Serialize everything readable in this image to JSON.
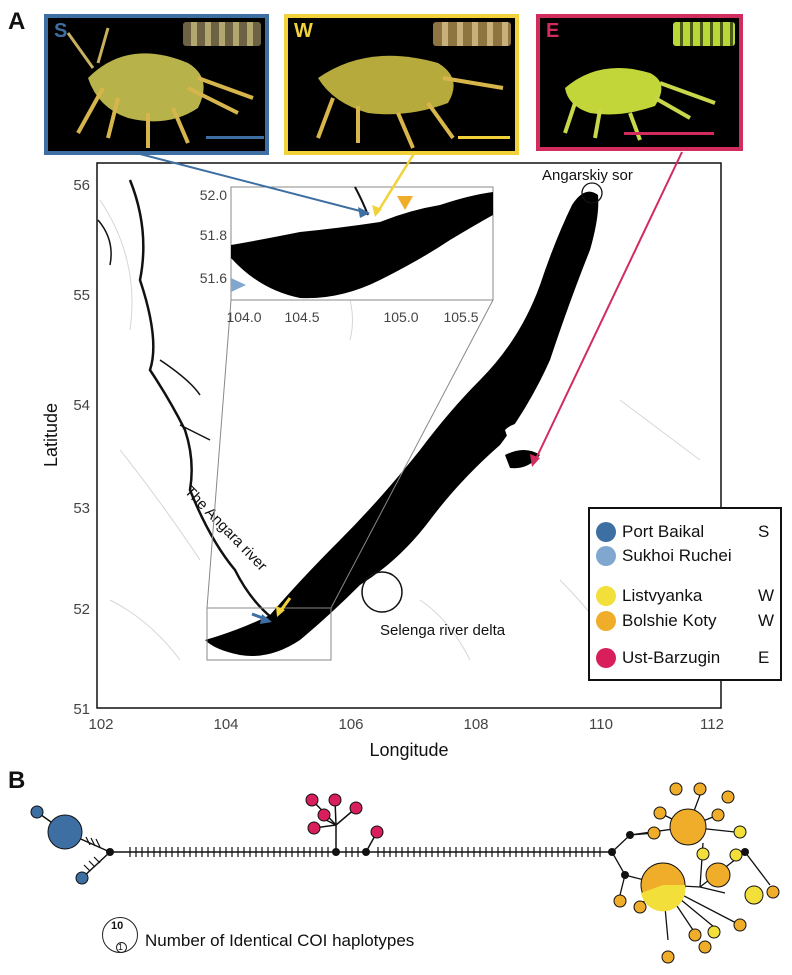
{
  "panels": {
    "a": "A",
    "b": "B"
  },
  "photos": [
    {
      "letter": "S",
      "color": "#3e6fa3",
      "strip": "#8b7e52"
    },
    {
      "letter": "W",
      "color": "#f2d23a",
      "strip": "#a58a47"
    },
    {
      "letter": "E",
      "color": "#d22c5e",
      "strip": "#c8e13a"
    }
  ],
  "map": {
    "xlabel": "Longitude",
    "ylabel": "Latitude",
    "xticks": [
      "102",
      "104",
      "106",
      "108",
      "110",
      "112"
    ],
    "yticks": [
      "51",
      "52",
      "53",
      "54",
      "55",
      "56"
    ],
    "inset_xticks": [
      "104.0",
      "104.5",
      "105.0",
      "105.5"
    ],
    "inset_yticks": [
      "51.6",
      "51.8",
      "52.0"
    ],
    "labels": {
      "angarskiy": "Angarskiy sor",
      "angara": "The Angara river",
      "selenga": "Selenga river delta"
    }
  },
  "legend": {
    "items": [
      {
        "name": "Port Baikal",
        "code": "S",
        "color": "#3e6fa3"
      },
      {
        "name": "Sukhoi Ruchei",
        "code": "",
        "color": "#7fa7cf"
      },
      {
        "name": "Listvyanka",
        "code": "W",
        "color": "#f2df3a"
      },
      {
        "name": "Bolshie Koty",
        "code": "W",
        "color": "#f0ad2a"
      },
      {
        "name": "Ust-Barzugin",
        "code": "E",
        "color": "#d81f5c"
      }
    ]
  },
  "network": {
    "count_label": "Number of Identical COI haplotypes",
    "count_big": "10",
    "count_small": "1"
  }
}
